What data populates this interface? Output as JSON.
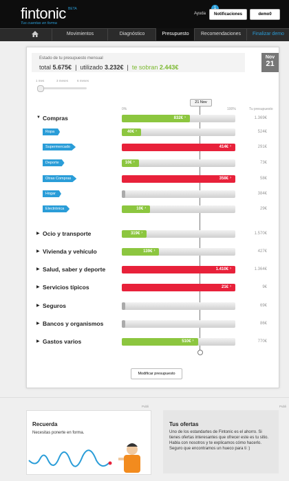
{
  "header": {
    "logo": "fintonic",
    "beta": "BETA",
    "tagline": "Tus cuentas en forma",
    "help": "Ayuda",
    "notification_count": 1,
    "notifications": "Notificaciones",
    "user": "demo0"
  },
  "nav": {
    "items": [
      "Movimientos",
      "Diagnóstico",
      "Presupuesto",
      "Recomendaciones"
    ],
    "active": 2,
    "cta": "Finalizar demo"
  },
  "summary": {
    "label": "Estado de tu presupuesto mensual",
    "total_label": "total",
    "total": "5.675€",
    "used_label": "utilizado",
    "used": "3.232€",
    "left_label": "te sobran",
    "left": "2.443€",
    "month": "Nov",
    "day": 21
  },
  "slider": [
    "1 mes",
    "3 meses",
    "6 meses"
  ],
  "scale": {
    "marker": "21 Nov",
    "min": "0%",
    "max": "100%",
    "budget_header": "Tu presupuesto"
  },
  "rows": [
    {
      "name": "Compras",
      "level": "main",
      "spent": "832€",
      "budget": "1.369€",
      "fill": 60,
      "color": "#8cc63f"
    },
    {
      "name": "Ropa",
      "level": "sub",
      "spent": "40€",
      "budget": "524€",
      "fill": 17,
      "color": "#8cc63f"
    },
    {
      "name": "Supermercado",
      "level": "sub",
      "spent": "414€",
      "budget": "291€",
      "fill": 100,
      "color": "#e8213a"
    },
    {
      "name": "Deporte",
      "level": "sub",
      "spent": "10€",
      "budget": "73€",
      "fill": 15,
      "color": "#8cc63f"
    },
    {
      "name": "Otras Compras",
      "level": "sub",
      "spent": "358€",
      "budget": "58€",
      "fill": 100,
      "color": "#e8213a"
    },
    {
      "name": "Hogar",
      "level": "sub",
      "spent": null,
      "budget": "384€",
      "fill": 3,
      "color": "#aaaaaa"
    },
    {
      "name": "Electrónica",
      "level": "sub",
      "spent": "10€",
      "budget": "29€",
      "fill": 25,
      "color": "#8cc63f"
    },
    {
      "name": "Ocio y transporte",
      "level": "main",
      "spent": "319€",
      "budget": "1.570€",
      "fill": 22,
      "color": "#8cc63f"
    },
    {
      "name": "Vivienda y vehículo",
      "level": "main",
      "spent": "139€",
      "budget": "427€",
      "fill": 33,
      "color": "#8cc63f"
    },
    {
      "name": "Salud, saber y deporte",
      "level": "main",
      "spent": "1.410€",
      "budget": "1.364€",
      "fill": 100,
      "color": "#e8213a"
    },
    {
      "name": "Servicios típicos",
      "level": "main",
      "spent": "21€",
      "budget": "9€",
      "fill": 100,
      "color": "#e8213a"
    },
    {
      "name": "Seguros",
      "level": "main",
      "spent": null,
      "budget": "69€",
      "fill": 3,
      "color": "#aaaaaa"
    },
    {
      "name": "Bancos y organismos",
      "level": "main",
      "spent": null,
      "budget": "86€",
      "fill": 3,
      "color": "#aaaaaa"
    },
    {
      "name": "Gastos varios",
      "level": "main",
      "spent": "510€",
      "budget": "770€",
      "fill": 67,
      "color": "#8cc63f"
    }
  ],
  "button": "Modificar presupuesto",
  "ads": {
    "publi": "Publi",
    "left": {
      "title": "Recuerda",
      "text": "Necesitas ponerte en forma."
    },
    "right": {
      "title": "Tus ofertas",
      "text": "Uno de los estandartes de Fintonic es el ahorro. Si tienes ofertas interesantes que ofrecer este es tu sitio. Habla con nosotros y te explicamos cómo hacerlo. Seguro que encontramos un hueco para ti :)"
    }
  }
}
